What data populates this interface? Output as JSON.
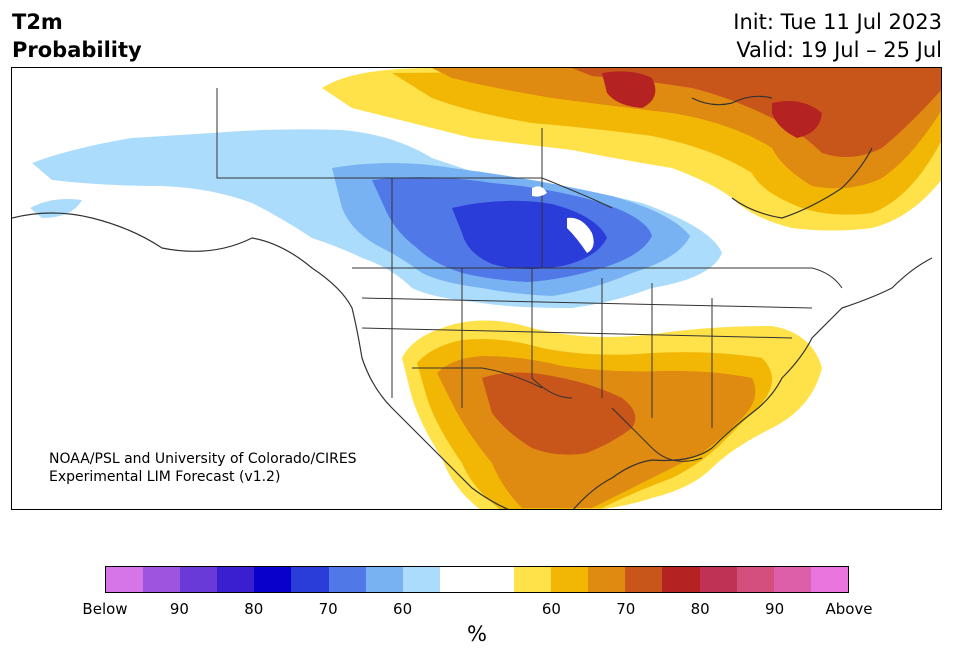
{
  "header": {
    "title_line1": "T2m",
    "title_line2": "Probability",
    "init": "Init: Tue 11 Jul 2023",
    "valid": "Valid: 19 Jul – 25 Jul"
  },
  "credit": {
    "line1": "NOAA/PSL and University of Colorado/CIRES",
    "line2": "Experimental LIM Forecast (v1.2)"
  },
  "colorbar": {
    "colors": [
      "#d575e8",
      "#9d55e0",
      "#6a3ad8",
      "#3a1fd0",
      "#0a00cc",
      "#2a3dd8",
      "#5078e6",
      "#78b2f2",
      "#acdcfc",
      "#ffffff",
      "#ffffff",
      "#ffe14a",
      "#f2b705",
      "#df8a10",
      "#c8561a",
      "#b42222",
      "#c03255",
      "#d44e7e",
      "#dd5ea9",
      "#e876de"
    ],
    "tick_labels": [
      "Below",
      "90",
      "80",
      "70",
      "60",
      "60",
      "70",
      "80",
      "90",
      "Above"
    ],
    "unit": "%"
  },
  "legend_meaning": {
    "below_colors": "blue/purple",
    "above_colors": "yellow/orange/red"
  }
}
